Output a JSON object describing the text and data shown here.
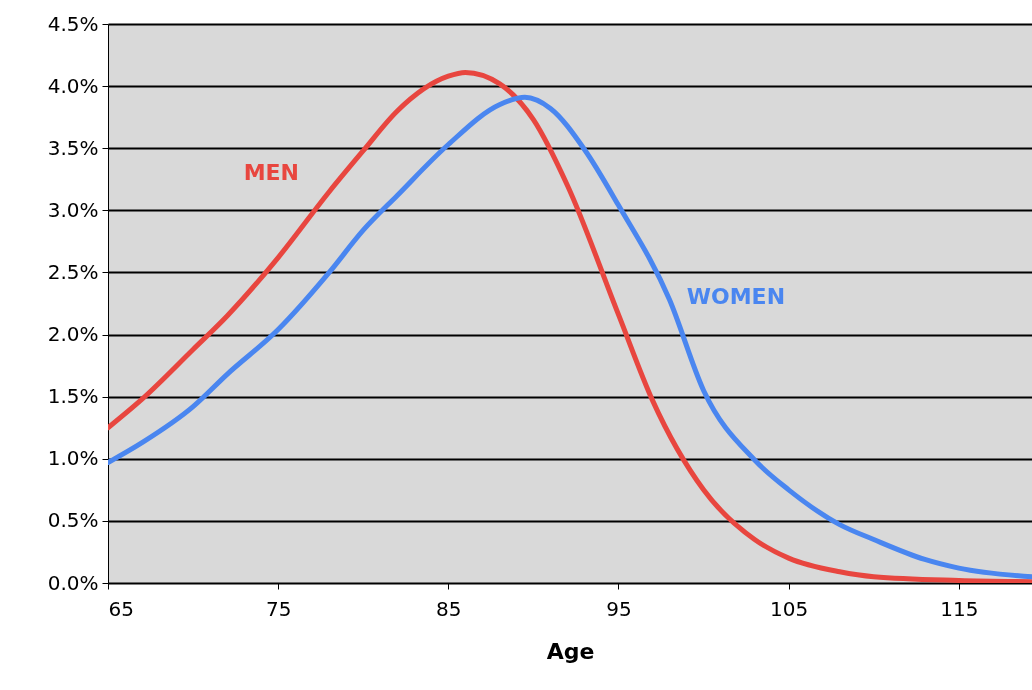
{
  "chart_data": {
    "type": "line",
    "xlabel": "Age",
    "xlim": [
      65,
      119.3
    ],
    "xticks": [
      65,
      75,
      85,
      95,
      105,
      115
    ],
    "ylim": [
      0,
      4.5
    ],
    "yticks": [
      {
        "value": 0,
        "label": "0.0%"
      },
      {
        "value": 0.5,
        "label": "0.5%"
      },
      {
        "value": 1,
        "label": "1.0%"
      },
      {
        "value": 1.5,
        "label": "1.5%"
      },
      {
        "value": 2,
        "label": "2.0%"
      },
      {
        "value": 2.5,
        "label": "2.5%"
      },
      {
        "value": 3,
        "label": "3.0%"
      },
      {
        "value": 3.5,
        "label": "3.5%"
      },
      {
        "value": 4,
        "label": "4.0%"
      },
      {
        "value": 4.5,
        "label": "4.5%"
      }
    ],
    "grid": "y",
    "legend": false,
    "marker": "none",
    "line_style": "solid",
    "series": [
      {
        "name": "MEN",
        "color": "#e8463f",
        "x": [
          65,
          67,
          70,
          72,
          75,
          78,
          80,
          82,
          85,
          86,
          88,
          90,
          92,
          95,
          97,
          100,
          103,
          105,
          108,
          110,
          115,
          119.3
        ],
        "values": [
          1.25,
          1.48,
          1.88,
          2.15,
          2.62,
          3.15,
          3.48,
          3.8,
          4.08,
          4.11,
          4.02,
          3.73,
          3.2,
          2.16,
          1.47,
          0.75,
          0.35,
          0.2,
          0.09,
          0.05,
          0.02,
          0.01
        ]
      },
      {
        "name": "WOMEN",
        "color": "#4a86f0",
        "x": [
          65,
          67,
          70,
          72,
          75,
          78,
          80,
          82,
          85,
          88,
          89.5,
          91,
          93,
          95,
          98,
          100,
          103,
          105,
          108,
          110,
          113,
          115,
          119.3
        ],
        "values": [
          0.97,
          1.13,
          1.42,
          1.68,
          2.04,
          2.5,
          2.84,
          3.12,
          3.53,
          3.85,
          3.91,
          3.82,
          3.49,
          3.04,
          2.28,
          1.55,
          0.99,
          0.75,
          0.47,
          0.35,
          0.19,
          0.12,
          0.05
        ]
      }
    ]
  }
}
